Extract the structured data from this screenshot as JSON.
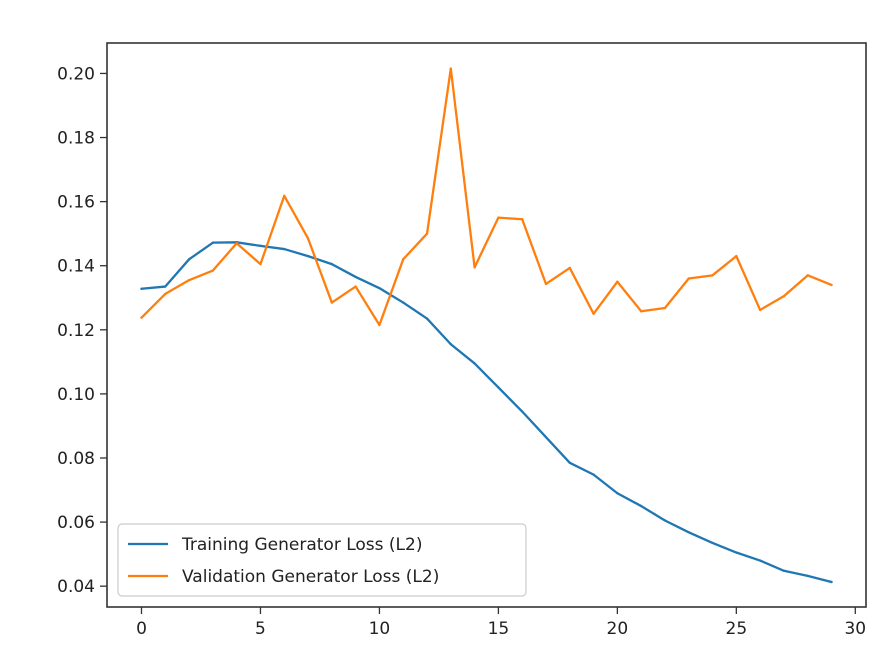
{
  "chart_data": {
    "type": "line",
    "title": "",
    "xlabel": "",
    "ylabel": "",
    "xlim": [
      -1.45,
      30.45
    ],
    "ylim": [
      0.0335,
      0.2095
    ],
    "x_ticks": [
      0,
      5,
      10,
      15,
      20,
      25,
      30
    ],
    "y_ticks": [
      0.04,
      0.06,
      0.08,
      0.1,
      0.12,
      0.14,
      0.16,
      0.18,
      0.2
    ],
    "x_tick_labels": [
      "0",
      "5",
      "10",
      "15",
      "20",
      "25",
      "30"
    ],
    "y_tick_labels": [
      "0.04",
      "0.06",
      "0.08",
      "0.10",
      "0.12",
      "0.14",
      "0.16",
      "0.18",
      "0.20"
    ],
    "grid": false,
    "legend_position": "lower-left",
    "x": [
      0,
      1,
      2,
      3,
      4,
      5,
      6,
      7,
      8,
      9,
      10,
      11,
      12,
      13,
      14,
      15,
      16,
      17,
      18,
      19,
      20,
      21,
      22,
      23,
      24,
      25,
      26,
      27,
      28,
      29
    ],
    "series": [
      {
        "name": "Training Generator Loss (L2)",
        "color": "#1f77b4",
        "values": [
          0.1328,
          0.1335,
          0.142,
          0.1472,
          0.1473,
          0.1462,
          0.1452,
          0.143,
          0.1405,
          0.1365,
          0.133,
          0.1285,
          0.1235,
          0.1155,
          0.1095,
          0.102,
          0.0945,
          0.0865,
          0.0785,
          0.0748,
          0.069,
          0.065,
          0.0605,
          0.0568,
          0.0535,
          0.0505,
          0.048,
          0.0448,
          0.0432,
          0.0413
        ]
      },
      {
        "name": "Validation Generator Loss (L2)",
        "color": "#ff7f0e",
        "values": [
          0.1238,
          0.1312,
          0.1355,
          0.1385,
          0.147,
          0.1405,
          0.1618,
          0.1485,
          0.1285,
          0.1335,
          0.1215,
          0.142,
          0.15,
          0.2015,
          0.1395,
          0.155,
          0.1545,
          0.1343,
          0.1393,
          0.125,
          0.135,
          0.1258,
          0.1268,
          0.136,
          0.137,
          0.143,
          0.1262,
          0.1305,
          0.137,
          0.134
        ]
      }
    ]
  }
}
